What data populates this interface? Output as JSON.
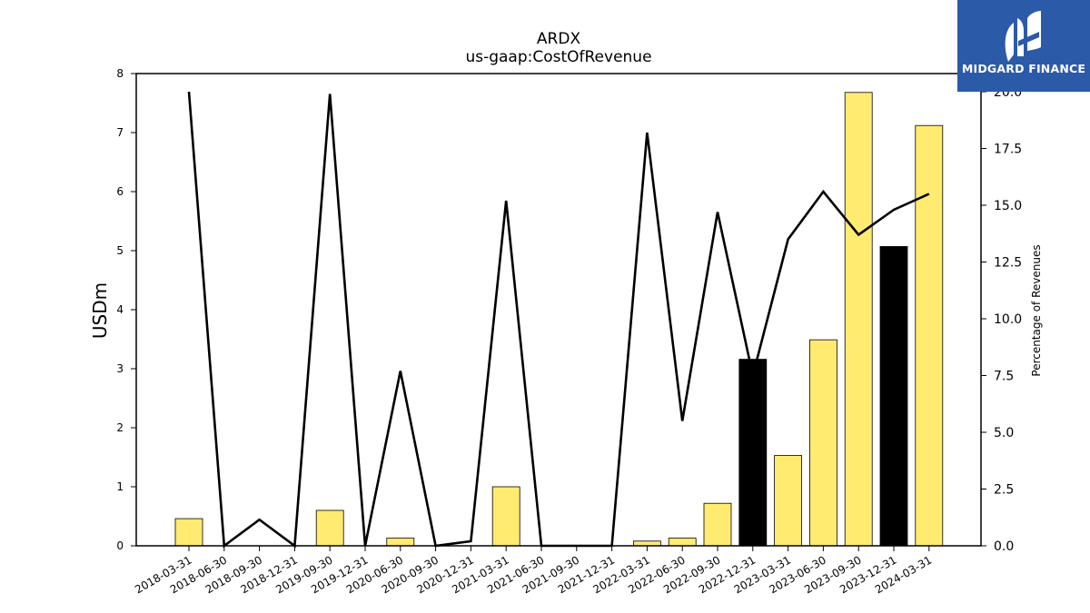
{
  "chart_data": {
    "type": "bar",
    "title": "ARDX",
    "subtitle": "us-gaap:CostOfRevenue",
    "ylabel": "USDm",
    "y2label": "Percentage of Revenues",
    "ylim": [
      0,
      8
    ],
    "y2lim": [
      0,
      20.8
    ],
    "yticks": [
      "0",
      "1",
      "2",
      "3",
      "4",
      "5",
      "6",
      "7",
      "8"
    ],
    "y2ticks": [
      "0.0",
      "2.5",
      "5.0",
      "7.5",
      "10.0",
      "12.5",
      "15.0",
      "17.5",
      "20.0"
    ],
    "categories": [
      "2018-03-31",
      "2018-06-30",
      "2018-09-30",
      "2018-12-31",
      "2019-09-30",
      "2019-12-31",
      "2020-06-30",
      "2020-09-30",
      "2020-12-31",
      "2021-03-31",
      "2021-06-30",
      "2021-09-30",
      "2021-12-31",
      "2022-03-31",
      "2022-06-30",
      "2022-09-30",
      "2022-12-31",
      "2023-03-31",
      "2023-06-30",
      "2023-09-30",
      "2023-12-31",
      "2024-03-31"
    ],
    "series": [
      {
        "kind": "bar",
        "values": [
          0.46,
          0,
          0,
          0,
          0.6,
          0,
          0.13,
          0,
          0,
          1.0,
          0,
          0,
          0,
          0.08,
          0.13,
          0.72,
          3.16,
          1.53,
          3.49,
          7.68,
          5.07,
          7.12
        ],
        "colors": [
          "#ffeb70",
          "#ffeb70",
          "#ffeb70",
          "#ffeb70",
          "#ffeb70",
          "#ffeb70",
          "#ffeb70",
          "#ffeb70",
          "#ffeb70",
          "#ffeb70",
          "#ffeb70",
          "#ffeb70",
          "#ffeb70",
          "#ffeb70",
          "#ffeb70",
          "#ffeb70",
          "#000000",
          "#ffeb70",
          "#ffeb70",
          "#ffeb70",
          "#000000",
          "#ffeb70"
        ]
      },
      {
        "kind": "line",
        "axis": "right",
        "color": "#000000",
        "values": [
          20.0,
          0.0,
          1.15,
          0.0,
          19.9,
          0.0,
          7.7,
          0.0,
          0.2,
          15.2,
          0.0,
          0.0,
          0.0,
          18.2,
          5.5,
          14.7,
          7.5,
          13.5,
          15.6,
          13.7,
          14.8,
          15.5
        ]
      }
    ]
  },
  "logo": {
    "text": "MIDGARD FINANCE"
  }
}
